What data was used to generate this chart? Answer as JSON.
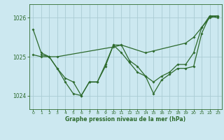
{
  "title": "Graphe pression niveau de la mer (hPa)",
  "background_color": "#cce8f0",
  "grid_color": "#aaccd4",
  "line_color": "#2d6a2d",
  "xlim": [
    -0.5,
    23.5
  ],
  "ylim": [
    1023.65,
    1026.35
  ],
  "yticks": [
    1024,
    1025,
    1026
  ],
  "xticks": [
    0,
    1,
    2,
    3,
    4,
    5,
    6,
    7,
    8,
    9,
    10,
    11,
    12,
    13,
    14,
    15,
    16,
    17,
    18,
    19,
    20,
    21,
    22,
    23
  ],
  "series1_x": [
    0,
    1,
    2,
    3,
    4,
    5,
    6,
    7,
    8,
    9,
    10,
    11,
    12,
    13,
    14,
    15,
    16,
    17,
    18,
    19,
    20,
    21,
    22,
    23
  ],
  "series1_y": [
    1025.7,
    1025.1,
    1025.0,
    1024.7,
    1024.35,
    1024.05,
    1024.0,
    1024.35,
    1024.35,
    1024.8,
    1025.3,
    1025.1,
    1024.85,
    1024.6,
    1024.5,
    1024.35,
    1024.5,
    1024.6,
    1024.8,
    1024.8,
    1025.1,
    1025.75,
    1026.0,
    1026.05
  ],
  "series2_x": [
    0,
    1,
    2,
    3,
    10,
    11,
    14,
    15,
    19,
    20,
    21,
    22,
    23
  ],
  "series2_y": [
    1025.05,
    1025.0,
    1025.0,
    1025.0,
    1025.25,
    1025.3,
    1025.1,
    1025.15,
    1025.35,
    1025.5,
    1025.75,
    1026.05,
    1026.05
  ],
  "series3_x": [
    1,
    2,
    3,
    4,
    5,
    6,
    7,
    8,
    9,
    10,
    11,
    12,
    13,
    14,
    15,
    16,
    17,
    18,
    19,
    20,
    21,
    22,
    23
  ],
  "series3_y": [
    1025.05,
    1025.0,
    1024.7,
    1024.45,
    1024.35,
    1024.0,
    1024.35,
    1024.35,
    1024.75,
    1025.3,
    1025.3,
    1024.9,
    1024.75,
    1024.5,
    1024.05,
    1024.4,
    1024.55,
    1024.7,
    1024.7,
    1024.75,
    1025.6,
    1026.05,
    1026.0
  ],
  "xlabel_fontsize": 5.5,
  "ytick_fontsize": 5.5,
  "xtick_fontsize": 4.5,
  "linewidth": 0.9,
  "markersize": 2.0
}
